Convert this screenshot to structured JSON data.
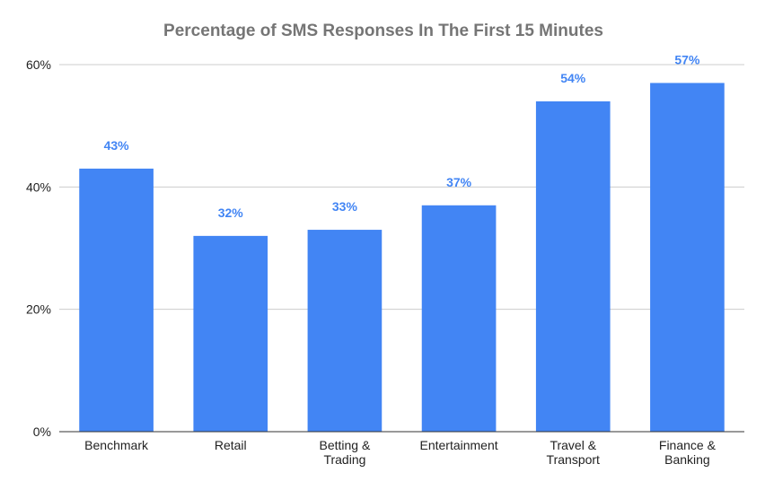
{
  "chart_data": {
    "type": "bar",
    "title": "Percentage of SMS Responses In The First 15 Minutes",
    "categories": [
      [
        "Benchmark"
      ],
      [
        "Retail"
      ],
      [
        "Betting &",
        "Trading"
      ],
      [
        "Entertainment"
      ],
      [
        "Travel &",
        "Transport"
      ],
      [
        "Finance &",
        "Banking"
      ]
    ],
    "values": [
      43,
      32,
      33,
      37,
      54,
      57
    ],
    "value_labels": [
      "43%",
      "32%",
      "33%",
      "37%",
      "54%",
      "57%"
    ],
    "y_ticks": [
      0,
      20,
      40,
      60
    ],
    "y_tick_labels": [
      "0%",
      "20%",
      "40%",
      "60%"
    ],
    "ylim": [
      0,
      60
    ],
    "xlabel": "",
    "ylabel": "",
    "grid": true,
    "legend": "none",
    "colors": {
      "bar": "#4285f4",
      "label": "#4285f4",
      "grid": "#cccccc",
      "axis": "#333333"
    }
  }
}
